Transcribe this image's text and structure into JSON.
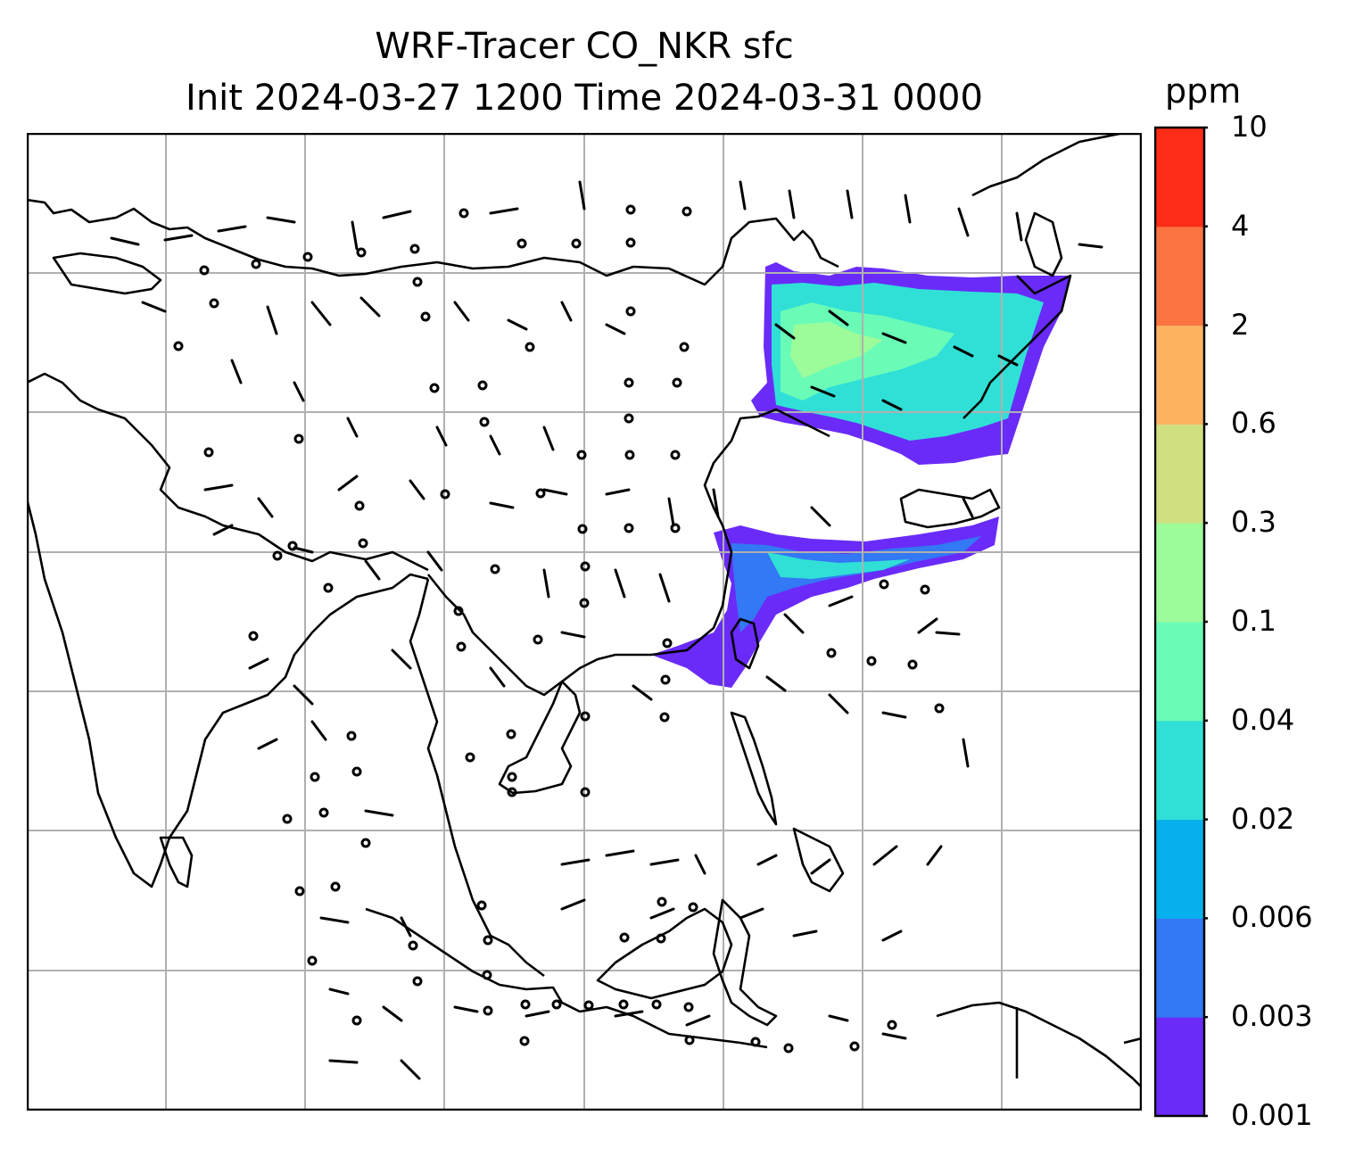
{
  "title": {
    "line1": "WRF-Tracer CO_NKR sfc",
    "line2": "Init 2024-03-27 1200 Time 2024-03-31 0000"
  },
  "colorbar": {
    "unit": "ppm",
    "ticks": [
      "0.001",
      "0.003",
      "0.006",
      "0.02",
      "0.04",
      "0.1",
      "0.3",
      "0.6",
      "2",
      "4",
      "10"
    ],
    "colors": [
      "#6a2bf9",
      "#3378f4",
      "#05b0ec",
      "#30e0d6",
      "#6afcb6",
      "#9cfc99",
      "#d0e081",
      "#fdb262",
      "#fc7441",
      "#fc2c17"
    ]
  },
  "map": {
    "gridline_color": "#b0b0b0",
    "coastline_color": "#000000",
    "tracer_colors": {
      "low": "#6a2bf9",
      "mid": "#30e0d6",
      "high": "#6afcb6",
      "peak": "#9cfc99"
    }
  }
}
